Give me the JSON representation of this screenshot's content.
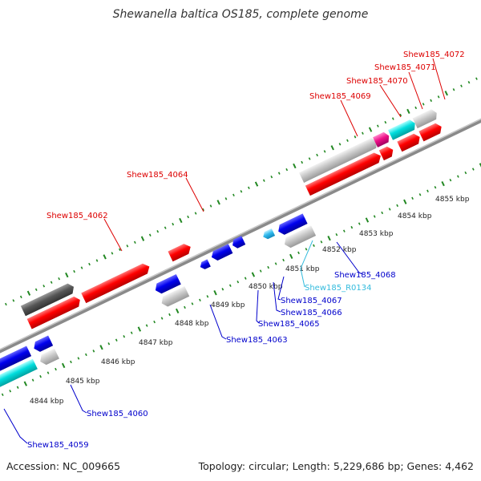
{
  "title": "Shewanella baltica OS185, complete genome",
  "footer": {
    "accession": "Accession: NC_009665",
    "topology": "Topology: circular; Length: 5,229,686 bp; Genes: 4,462"
  },
  "colors": {
    "forward": "#ff0000",
    "reverse": "#0000ee",
    "rna": "#00cccc",
    "pink": "#ee1188",
    "gray": "#c8c8c8",
    "dark_gray": "#555555",
    "backbone": "#888888",
    "tick": "#228822",
    "label_forward": "#dd0000",
    "label_reverse": "#0000cc",
    "label_rna": "#33bbdd"
  },
  "scale_labels": [
    "4844 kbp",
    "4845 kbp",
    "4846 kbp",
    "4847 kbp",
    "4848 kbp",
    "4849 kbp",
    "4850 kbp",
    "4851 kbp",
    "4852 kbp",
    "4853 kbp",
    "4854 kbp",
    "4855 kbp"
  ],
  "gene_labels_forward": [
    "Shew185_4062",
    "Shew185_4064",
    "Shew185_4069",
    "Shew185_4070",
    "Shew185_4071",
    "Shew185_4072"
  ],
  "gene_labels_reverse": [
    "Shew185_4059",
    "Shew185_4060",
    "Shew185_4063",
    "Shew185_4065",
    "Shew185_4066",
    "Shew185_4067",
    "Shew185_R0134",
    "Shew185_4068"
  ]
}
